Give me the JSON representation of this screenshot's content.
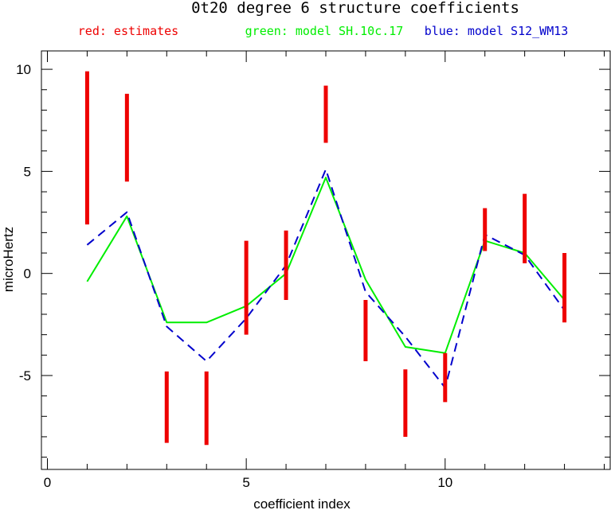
{
  "chart_data": {
    "type": "line",
    "title": "0t20 degree 6 structure coefficients",
    "legend": [
      {
        "text": "red: estimates",
        "color": "#ee0000"
      },
      {
        "text": "green: model SH.10c.17",
        "color": "#00ee00"
      },
      {
        "text": "blue: model S12_WM13",
        "color": "#0000cc"
      }
    ],
    "xlabel": "coefficient index",
    "ylabel": "microHertz",
    "xlim": [
      -0.15,
      14.15
    ],
    "ylim": [
      -9.6,
      10.9
    ],
    "xticks_major": [
      0,
      5,
      10
    ],
    "yticks_major": [
      10,
      5,
      0,
      -5
    ],
    "xtick_labels": [
      "0",
      "5",
      "10"
    ],
    "ytick_labels": [
      "10",
      "5",
      "0",
      "-5"
    ],
    "estimates": [
      {
        "x": 1,
        "low": 2.4,
        "high": 9.9
      },
      {
        "x": 2,
        "low": 4.5,
        "high": 8.8
      },
      {
        "x": 3,
        "low": -8.3,
        "high": -4.8
      },
      {
        "x": 4,
        "low": -8.4,
        "high": -4.8
      },
      {
        "x": 5,
        "low": -3.0,
        "high": 1.6
      },
      {
        "x": 6,
        "low": -1.3,
        "high": 2.1
      },
      {
        "x": 7,
        "low": 6.4,
        "high": 9.2
      },
      {
        "x": 8,
        "low": -4.3,
        "high": -1.3
      },
      {
        "x": 9,
        "low": -8.0,
        "high": -4.7
      },
      {
        "x": 10,
        "low": -6.3,
        "high": -3.9
      },
      {
        "x": 11,
        "low": 1.1,
        "high": 3.2
      },
      {
        "x": 12,
        "low": 0.5,
        "high": 3.9
      },
      {
        "x": 13,
        "low": -2.4,
        "high": 1.0
      }
    ],
    "series": [
      {
        "name": "model SH.10c.17",
        "color": "#00ee00",
        "style": "solid",
        "x": [
          1,
          2,
          3,
          4,
          5,
          6,
          7,
          8,
          9,
          10,
          11,
          12,
          13
        ],
        "y": [
          -0.4,
          2.8,
          -2.4,
          -2.4,
          -1.6,
          0.0,
          4.7,
          -0.3,
          -3.6,
          -3.9,
          1.6,
          1.0,
          -1.3
        ]
      },
      {
        "name": "model S12_WM13",
        "color": "#0000cc",
        "style": "dashed",
        "x": [
          1,
          2,
          3,
          4,
          5,
          6,
          7,
          8,
          9,
          10,
          11,
          12,
          13
        ],
        "y": [
          1.4,
          3.0,
          -2.6,
          -4.3,
          -2.2,
          0.4,
          5.1,
          -0.9,
          -3.1,
          -5.6,
          1.9,
          0.9,
          -1.8
        ]
      }
    ],
    "grid": false
  }
}
